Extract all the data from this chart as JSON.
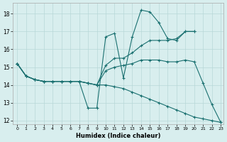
{
  "xlabel": "Humidex (Indice chaleur)",
  "bg_color": "#d8eeee",
  "grid_color": "#b8d8d8",
  "line_color": "#1a7070",
  "xlim": [
    -0.5,
    23.3
  ],
  "ylim": [
    11.8,
    18.6
  ],
  "yticks": [
    12,
    13,
    14,
    15,
    16,
    17,
    18
  ],
  "xticks": [
    0,
    1,
    2,
    3,
    4,
    5,
    6,
    7,
    8,
    9,
    10,
    11,
    12,
    13,
    14,
    15,
    16,
    17,
    18,
    19,
    20,
    21,
    22,
    23
  ],
  "line1_x": [
    0,
    1,
    2,
    3,
    4,
    5,
    6,
    7,
    8,
    9,
    10,
    11,
    12,
    13,
    14,
    15,
    16,
    17,
    18,
    19,
    20
  ],
  "line1_y": [
    15.2,
    14.5,
    14.3,
    14.2,
    14.2,
    14.2,
    14.2,
    14.2,
    12.7,
    12.7,
    16.7,
    16.9,
    14.4,
    16.7,
    18.2,
    18.1,
    17.5,
    16.6,
    16.5,
    17.0,
    17.0
  ],
  "line2_x": [
    0,
    1,
    2,
    3,
    4,
    5,
    6,
    7,
    8,
    9,
    10,
    11,
    12,
    13,
    14,
    15,
    16,
    17,
    18,
    19,
    20,
    21,
    22,
    23
  ],
  "line2_y": [
    15.2,
    14.5,
    14.3,
    14.2,
    14.2,
    14.2,
    14.2,
    14.2,
    14.1,
    14.0,
    14.0,
    13.9,
    13.8,
    13.6,
    13.4,
    13.2,
    13.0,
    12.8,
    12.6,
    12.4,
    12.2,
    12.1,
    12.0,
    11.9
  ],
  "line3_x": [
    0,
    1,
    2,
    3,
    4,
    5,
    6,
    7,
    8,
    9,
    10,
    11,
    12,
    13,
    14,
    15,
    16,
    17,
    18,
    19,
    20
  ],
  "line3_y": [
    15.2,
    14.5,
    14.3,
    14.2,
    14.2,
    14.2,
    14.2,
    14.2,
    14.1,
    14.0,
    15.1,
    15.5,
    15.5,
    15.8,
    16.2,
    16.5,
    16.5,
    16.5,
    16.6,
    17.0,
    17.0
  ],
  "line4_x": [
    0,
    1,
    2,
    3,
    4,
    5,
    6,
    7,
    8,
    9,
    10,
    11,
    12,
    13,
    14,
    15,
    16,
    17,
    18,
    19,
    20,
    21,
    22,
    23
  ],
  "line4_y": [
    15.2,
    14.5,
    14.3,
    14.2,
    14.2,
    14.2,
    14.2,
    14.2,
    14.1,
    14.0,
    14.8,
    15.0,
    15.1,
    15.2,
    15.4,
    15.4,
    15.4,
    15.3,
    15.3,
    15.4,
    15.3,
    14.1,
    12.9,
    11.9
  ],
  "figsize": [
    3.2,
    2.0
  ],
  "dpi": 100
}
